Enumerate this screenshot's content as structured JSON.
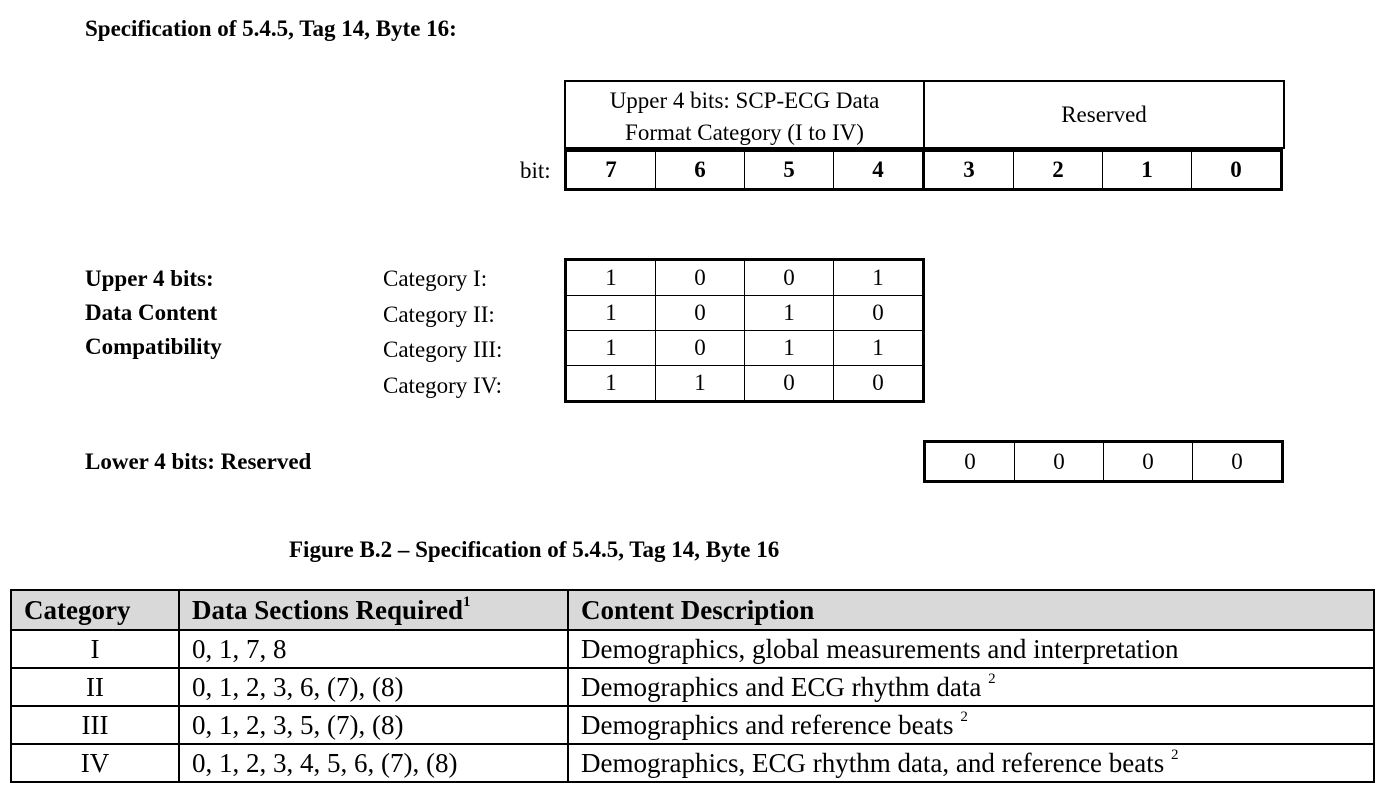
{
  "spec_title": "Specification of 5.4.5, Tag 14, Byte 16:",
  "header": {
    "upper_line1": "Upper 4 bits: SCP-ECG Data",
    "upper_line2": "Format Category (I to IV)",
    "reserved": "Reserved"
  },
  "bit_label": "bit:",
  "bits": [
    "7",
    "6",
    "5",
    "4",
    "3",
    "2",
    "1",
    "0"
  ],
  "upper_label": [
    "Upper 4 bits:",
    "Data Content",
    "Compatibility"
  ],
  "categories": [
    {
      "label": "Category I:",
      "bits": [
        "1",
        "0",
        "0",
        "1"
      ]
    },
    {
      "label": "Category II:",
      "bits": [
        "1",
        "0",
        "1",
        "0"
      ]
    },
    {
      "label": "Category III:",
      "bits": [
        "1",
        "0",
        "1",
        "1"
      ]
    },
    {
      "label": "Category IV:",
      "bits": [
        "1",
        "1",
        "0",
        "0"
      ]
    }
  ],
  "lower_label": "Lower 4 bits:  Reserved",
  "lower_bits": [
    "0",
    "0",
    "0",
    "0"
  ],
  "caption": "Figure B.2 – Specification of 5.4.5, Tag 14, Byte 16",
  "table": {
    "headers": [
      "Category",
      "Data Sections Required",
      "Content Description"
    ],
    "header_footnote": "1",
    "rows": [
      {
        "category": "I",
        "sections": "0, 1, 7, 8",
        "description": "Demographics, global measurements and interpretation",
        "footnote": ""
      },
      {
        "category": "II",
        "sections": "0, 1, 2, 3, 6, (7), (8)",
        "description": "Demographics and ECG rhythm data",
        "footnote": "2"
      },
      {
        "category": "III",
        "sections": "0, 1, 2, 3, 5, (7), (8)",
        "description": "Demographics and reference beats",
        "footnote": "2"
      },
      {
        "category": "IV",
        "sections": "0, 1, 2, 3, 4, 5, 6, (7), (8)",
        "description": "Demographics, ECG rhythm data, and reference beats",
        "footnote": "2"
      }
    ]
  }
}
